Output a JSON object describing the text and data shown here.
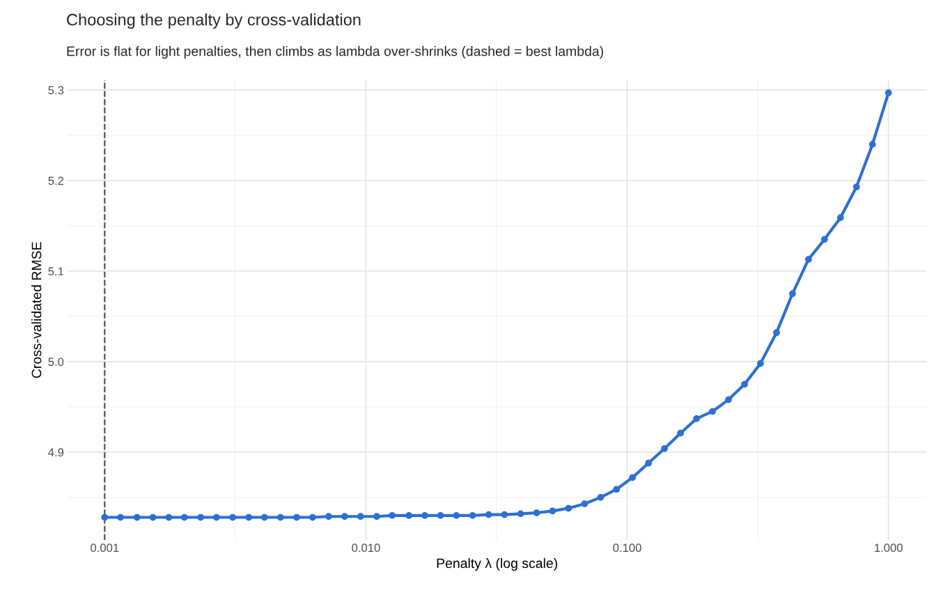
{
  "chart_data": {
    "type": "line",
    "title": "Choosing the penalty by cross-validation",
    "subtitle": "Error is flat for light penalties, then climbs as lambda over-shrinks (dashed = best lambda)",
    "xlabel": "Penalty λ (log scale)",
    "ylabel": "Cross-validated RMSE",
    "x": [
      0.001,
      0.00115,
      0.00133,
      0.00153,
      0.00176,
      0.00202,
      0.00233,
      0.00268,
      0.00309,
      0.00356,
      0.00409,
      0.00471,
      0.00543,
      0.00625,
      0.0072,
      0.00829,
      0.00954,
      0.011,
      0.0126,
      0.0146,
      0.0168,
      0.0193,
      0.0222,
      0.0256,
      0.0295,
      0.0339,
      0.0391,
      0.045,
      0.0518,
      0.0596,
      0.0687,
      0.0791,
      0.091,
      0.1048,
      0.1207,
      0.1389,
      0.16,
      0.1842,
      0.2121,
      0.2442,
      0.2812,
      0.3237,
      0.3728,
      0.4292,
      0.4942,
      0.569,
      0.6551,
      0.7543,
      0.8685,
      1.0
    ],
    "series": [
      {
        "color": "#2e6fd1",
        "values": [
          4.828,
          4.828,
          4.828,
          4.828,
          4.828,
          4.828,
          4.828,
          4.828,
          4.828,
          4.828,
          4.828,
          4.828,
          4.828,
          4.828,
          4.829,
          4.829,
          4.829,
          4.829,
          4.83,
          4.83,
          4.83,
          4.83,
          4.83,
          4.83,
          4.831,
          4.831,
          4.832,
          4.833,
          4.835,
          4.838,
          4.843,
          4.85,
          4.859,
          4.872,
          4.888,
          4.904,
          4.921,
          4.937,
          4.945,
          4.958,
          4.975,
          4.998,
          5.032,
          5.075,
          5.113,
          5.135,
          5.159,
          5.193,
          5.24,
          5.297
        ]
      }
    ],
    "log": "x",
    "xlim": [
      0.00072,
      1.4
    ],
    "ylim": [
      4.803,
      5.311
    ],
    "xticks": [
      {
        "value": 0.001,
        "label": "0.001"
      },
      {
        "value": 0.01,
        "label": "0.010"
      },
      {
        "value": 0.1,
        "label": "0.100"
      },
      {
        "value": 1,
        "label": "1.000"
      }
    ],
    "yticks": [
      {
        "value": 4.9,
        "label": "4.9"
      },
      {
        "value": 5.0,
        "label": "5.0"
      },
      {
        "value": 5.1,
        "label": "5.1"
      },
      {
        "value": 5.2,
        "label": "5.2"
      },
      {
        "value": 5.3,
        "label": "5.3"
      }
    ],
    "ref_lines": [
      {
        "axis": "x",
        "value": 0.001,
        "color": "#555555",
        "line_style": "dashed"
      }
    ],
    "grid": true,
    "marker": "circle",
    "line_style": "solid",
    "legend": false
  }
}
